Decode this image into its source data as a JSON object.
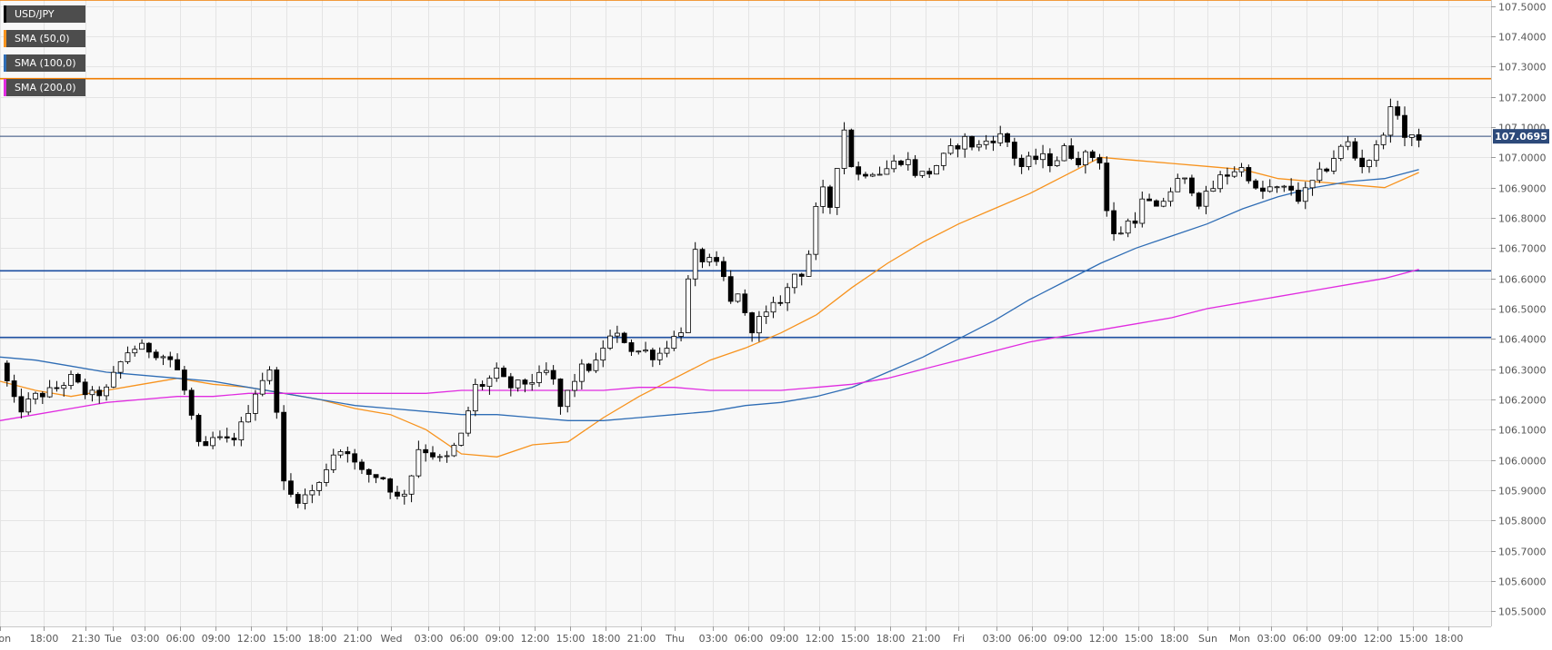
{
  "colors": {
    "background": "#f8f8f8",
    "grid": "#e4e4e4",
    "candle_up": "#ffffff",
    "candle_down": "#000000",
    "sma50": "#f7931e",
    "sma100": "#2f6db5",
    "sma200": "#e02be0",
    "resistance": "#f07c00",
    "support": "#1c4ea0",
    "current_price": "#2d4a7a"
  },
  "legend": [
    {
      "label": "USD/JPY",
      "color": "#000000"
    },
    {
      "label": "SMA (50,0)",
      "color": "#f7931e"
    },
    {
      "label": "SMA (100,0)",
      "color": "#2f6db5"
    },
    {
      "label": "SMA (200,0)",
      "color": "#e02be0"
    }
  ],
  "chart_data": {
    "type": "candlestick",
    "symbol": "USD/JPY",
    "ylim": [
      105.45,
      107.52
    ],
    "y_ticks": [
      "105.5000",
      "105.6000",
      "105.7000",
      "105.8000",
      "105.9000",
      "106.0000",
      "106.1000",
      "106.2000",
      "106.3000",
      "106.4000",
      "106.5000",
      "106.6000",
      "106.7000",
      "106.8000",
      "106.9000",
      "107.0000",
      "107.1000",
      "107.2000",
      "107.3000",
      "107.4000",
      "107.5000"
    ],
    "x_ticks": [
      {
        "label": "Mon",
        "t": 0
      },
      {
        "label": "18:00",
        "t": 3.7
      },
      {
        "label": "21:30",
        "t": 7.2
      },
      {
        "label": "Tue",
        "t": 9.5
      },
      {
        "label": "03:00",
        "t": 12.2
      },
      {
        "label": "06:00",
        "t": 15.2
      },
      {
        "label": "09:00",
        "t": 18.2
      },
      {
        "label": "12:00",
        "t": 21.2
      },
      {
        "label": "15:00",
        "t": 24.2
      },
      {
        "label": "18:00",
        "t": 27.2
      },
      {
        "label": "21:00",
        "t": 30.2
      },
      {
        "label": "Wed",
        "t": 33.0
      },
      {
        "label": "03:00",
        "t": 36.2
      },
      {
        "label": "06:00",
        "t": 39.2
      },
      {
        "label": "09:00",
        "t": 42.2
      },
      {
        "label": "12:00",
        "t": 45.2
      },
      {
        "label": "15:00",
        "t": 48.2
      },
      {
        "label": "18:00",
        "t": 51.2
      },
      {
        "label": "21:00",
        "t": 54.2
      },
      {
        "label": "Thu",
        "t": 57.0
      },
      {
        "label": "03:00",
        "t": 60.2
      },
      {
        "label": "06:00",
        "t": 63.2
      },
      {
        "label": "09:00",
        "t": 66.2
      },
      {
        "label": "12:00",
        "t": 69.2
      },
      {
        "label": "15:00",
        "t": 72.2
      },
      {
        "label": "18:00",
        "t": 75.2
      },
      {
        "label": "21:00",
        "t": 78.2
      },
      {
        "label": "Fri",
        "t": 81.0
      },
      {
        "label": "03:00",
        "t": 84.2
      },
      {
        "label": "06:00",
        "t": 87.2
      },
      {
        "label": "09:00",
        "t": 90.2
      },
      {
        "label": "12:00",
        "t": 93.2
      },
      {
        "label": "15:00",
        "t": 96.2
      },
      {
        "label": "18:00",
        "t": 99.2
      },
      {
        "label": "Sun",
        "t": 102.0
      },
      {
        "label": "Mon",
        "t": 104.7
      },
      {
        "label": "03:00",
        "t": 107.4
      },
      {
        "label": "06:00",
        "t": 110.4
      },
      {
        "label": "09:00",
        "t": 113.4
      },
      {
        "label": "12:00",
        "t": 116.4
      },
      {
        "label": "15:00",
        "t": 119.4
      },
      {
        "label": "18:00",
        "t": 122.4
      }
    ],
    "current_price": 107.0695,
    "current_price_label": "107.0695",
    "horizontal_levels": [
      {
        "name": "resistance-top",
        "value": 107.52,
        "color": "#f07c00"
      },
      {
        "name": "resistance",
        "value": 107.26,
        "color": "#f07c00"
      },
      {
        "name": "support-upper",
        "value": 106.625,
        "color": "#1c4ea0"
      },
      {
        "name": "support-lower",
        "value": 106.405,
        "color": "#1c4ea0"
      }
    ],
    "candle_path": [
      [
        0,
        106.32
      ],
      [
        1.5,
        106.16
      ],
      [
        3,
        106.21
      ],
      [
        4.5,
        106.23
      ],
      [
        6,
        106.27
      ],
      [
        7.5,
        106.21
      ],
      [
        9,
        106.23
      ],
      [
        10,
        106.31
      ],
      [
        11,
        106.37
      ],
      [
        12.3,
        106.37
      ],
      [
        13.5,
        106.35
      ],
      [
        14.5,
        106.33
      ],
      [
        15.3,
        106.27
      ],
      [
        16.2,
        106.14
      ],
      [
        17,
        106.01
      ],
      [
        18,
        106.07
      ],
      [
        19.5,
        106.06
      ],
      [
        20.5,
        106.12
      ],
      [
        21.5,
        106.22
      ],
      [
        22,
        106.26
      ],
      [
        22.6,
        106.29
      ],
      [
        23.2,
        106.28
      ],
      [
        23.8,
        105.93
      ],
      [
        24.8,
        105.87
      ],
      [
        25.8,
        105.88
      ],
      [
        27,
        105.92
      ],
      [
        28,
        106.02
      ],
      [
        29.3,
        106.04
      ],
      [
        30.3,
        105.96
      ],
      [
        31.5,
        105.95
      ],
      [
        32.5,
        105.94
      ],
      [
        33.5,
        105.87
      ],
      [
        34.5,
        105.91
      ],
      [
        35.3,
        106.04
      ],
      [
        36.2,
        106.03
      ],
      [
        37.5,
        105.99
      ],
      [
        38.5,
        106.05
      ],
      [
        39.3,
        106.1
      ],
      [
        39.9,
        106.24
      ],
      [
        40.9,
        106.25
      ],
      [
        42,
        106.29
      ],
      [
        43,
        106.24
      ],
      [
        44,
        106.25
      ],
      [
        45.5,
        106.27
      ],
      [
        46.5,
        106.3
      ],
      [
        47.3,
        106.17
      ],
      [
        48.2,
        106.24
      ],
      [
        49,
        106.3
      ],
      [
        50.3,
        106.31
      ],
      [
        51.2,
        106.4
      ],
      [
        52.5,
        106.41
      ],
      [
        53.5,
        106.36
      ],
      [
        54.5,
        106.36
      ],
      [
        55.5,
        106.34
      ],
      [
        56.5,
        106.39
      ],
      [
        57.5,
        106.42
      ],
      [
        58.1,
        106.58
      ],
      [
        58.7,
        106.68
      ],
      [
        59.5,
        106.66
      ],
      [
        60.3,
        106.65
      ],
      [
        61,
        106.62
      ],
      [
        61.8,
        106.51
      ],
      [
        62.5,
        106.57
      ],
      [
        63.2,
        106.42
      ],
      [
        64,
        106.46
      ],
      [
        64.8,
        106.48
      ],
      [
        65.5,
        106.51
      ],
      [
        66.5,
        106.56
      ],
      [
        67.2,
        106.62
      ],
      [
        68,
        106.62
      ],
      [
        68.6,
        106.73
      ],
      [
        69.3,
        106.92
      ],
      [
        70,
        106.82
      ],
      [
        70.6,
        106.9
      ],
      [
        71.1,
        107.18
      ],
      [
        71.6,
        107.0
      ],
      [
        72.5,
        106.94
      ],
      [
        73.5,
        106.96
      ],
      [
        74.5,
        106.95
      ],
      [
        75.5,
        106.98
      ],
      [
        76.5,
        107.0
      ],
      [
        77.5,
        106.94
      ],
      [
        78.5,
        106.95
      ],
      [
        79.5,
        106.99
      ],
      [
        80.5,
        107.03
      ],
      [
        81.5,
        107.06
      ],
      [
        82.5,
        107.03
      ],
      [
        83.5,
        107.06
      ],
      [
        84.5,
        107.07
      ],
      [
        85.5,
        107.04
      ],
      [
        86,
        106.96
      ],
      [
        87,
        106.99
      ],
      [
        88,
        107.0
      ],
      [
        89,
        106.98
      ],
      [
        90,
        107.03
      ],
      [
        91,
        106.99
      ],
      [
        92,
        107.01
      ],
      [
        93,
        106.99
      ],
      [
        93.6,
        106.8
      ],
      [
        94.3,
        106.72
      ],
      [
        95,
        106.78
      ],
      [
        96,
        106.8
      ],
      [
        96.8,
        106.88
      ],
      [
        97.5,
        106.81
      ],
      [
        98.5,
        106.87
      ],
      [
        99.5,
        106.92
      ],
      [
        100.5,
        106.92
      ],
      [
        101.2,
        106.85
      ],
      [
        102.2,
        106.88
      ],
      [
        103,
        106.93
      ],
      [
        104,
        106.95
      ],
      [
        104.7,
        106.97
      ],
      [
        105.5,
        106.94
      ],
      [
        106.3,
        106.87
      ],
      [
        107.1,
        106.9
      ],
      [
        108.1,
        106.89
      ],
      [
        109,
        106.9
      ],
      [
        109.8,
        106.86
      ],
      [
        110.6,
        106.9
      ],
      [
        111.4,
        106.94
      ],
      [
        112.2,
        106.97
      ],
      [
        113,
        107.02
      ],
      [
        114,
        107.05
      ],
      [
        114.8,
        106.97
      ],
      [
        115.6,
        106.99
      ],
      [
        116.3,
        107.03
      ],
      [
        116.9,
        107.09
      ],
      [
        117.4,
        107.15
      ],
      [
        118.2,
        107.15
      ],
      [
        118.8,
        107.05
      ],
      [
        119.3,
        107.06
      ],
      [
        119.9,
        107.07
      ]
    ],
    "series": [
      {
        "name": "SMA (50,0)",
        "color": "#f7931e",
        "x": [
          0,
          3,
          6,
          9,
          12,
          15,
          18,
          21,
          24,
          27,
          30,
          33,
          36,
          39,
          42,
          45,
          48,
          51,
          54,
          57,
          60,
          63,
          66,
          69,
          72,
          75,
          78,
          81,
          84,
          87,
          90,
          93,
          96,
          99,
          102,
          105,
          108,
          111,
          114,
          117,
          119.9
        ],
        "values": [
          106.26,
          106.23,
          106.21,
          106.23,
          106.25,
          106.27,
          106.25,
          106.24,
          106.22,
          106.2,
          106.17,
          106.15,
          106.1,
          106.02,
          106.01,
          106.05,
          106.06,
          106.14,
          106.21,
          106.27,
          106.33,
          106.37,
          106.42,
          106.48,
          106.57,
          106.65,
          106.72,
          106.78,
          106.83,
          106.88,
          106.94,
          107.0,
          106.99,
          106.98,
          106.97,
          106.96,
          106.93,
          106.92,
          106.91,
          106.9,
          106.95
        ]
      },
      {
        "name": "SMA (100,0)",
        "color": "#2f6db5",
        "x": [
          0,
          3,
          6,
          9,
          12,
          15,
          18,
          21,
          24,
          27,
          30,
          33,
          36,
          39,
          42,
          45,
          48,
          51,
          54,
          57,
          60,
          63,
          66,
          69,
          72,
          75,
          78,
          81,
          84,
          87,
          90,
          93,
          96,
          99,
          102,
          105,
          108,
          111,
          114,
          117,
          119.9
        ],
        "values": [
          106.34,
          106.33,
          106.31,
          106.29,
          106.28,
          106.27,
          106.26,
          106.24,
          106.22,
          106.2,
          106.18,
          106.17,
          106.16,
          106.15,
          106.15,
          106.14,
          106.13,
          106.13,
          106.14,
          106.15,
          106.16,
          106.18,
          106.19,
          106.21,
          106.24,
          106.29,
          106.34,
          106.4,
          106.46,
          106.53,
          106.59,
          106.65,
          106.7,
          106.74,
          106.78,
          106.83,
          106.87,
          106.9,
          106.92,
          106.93,
          106.96
        ]
      },
      {
        "name": "SMA (200,0)",
        "color": "#e02be0",
        "x": [
          0,
          3,
          6,
          9,
          12,
          15,
          18,
          21,
          24,
          27,
          30,
          33,
          36,
          39,
          42,
          45,
          48,
          51,
          54,
          57,
          60,
          63,
          66,
          69,
          72,
          75,
          78,
          81,
          84,
          87,
          90,
          93,
          96,
          99,
          102,
          105,
          108,
          111,
          114,
          117,
          119.9
        ],
        "values": [
          106.13,
          106.15,
          106.17,
          106.19,
          106.2,
          106.21,
          106.21,
          106.22,
          106.22,
          106.22,
          106.22,
          106.22,
          106.22,
          106.23,
          106.23,
          106.23,
          106.23,
          106.23,
          106.24,
          106.24,
          106.23,
          106.23,
          106.23,
          106.24,
          106.25,
          106.27,
          106.3,
          106.33,
          106.36,
          106.39,
          106.41,
          106.43,
          106.45,
          106.47,
          106.5,
          106.52,
          106.54,
          106.56,
          106.58,
          106.6,
          106.63
        ]
      }
    ]
  }
}
